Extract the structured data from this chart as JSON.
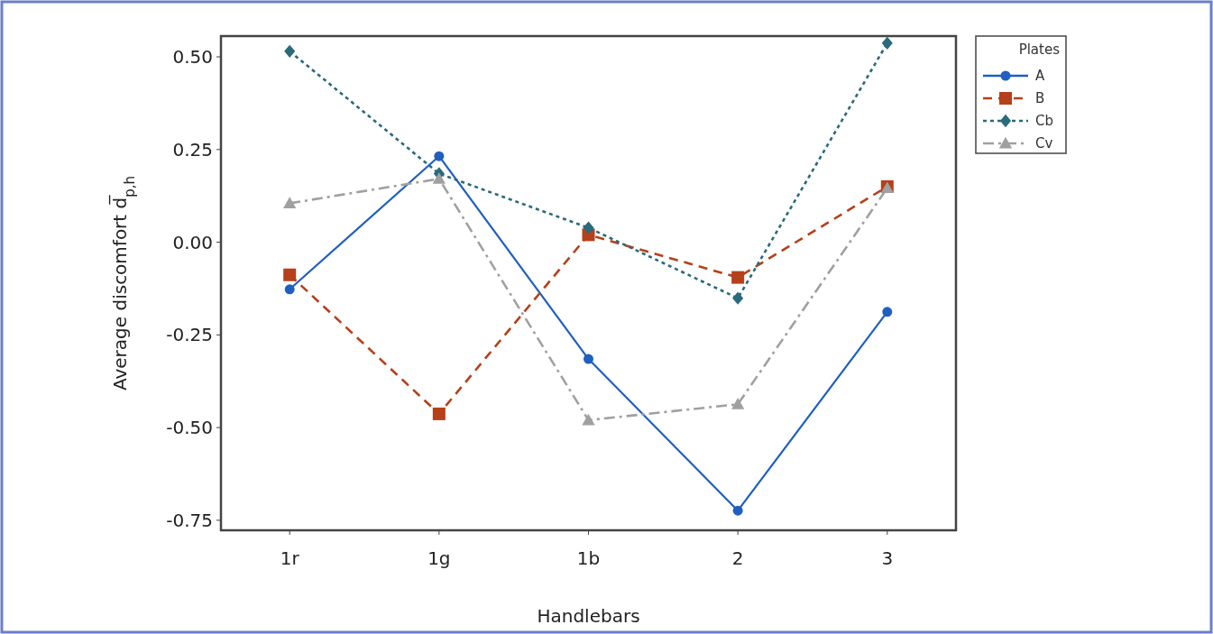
{
  "chart_data": {
    "type": "line",
    "xlabel": "Handlebars",
    "ylabel": "Average discomfort d̅$_{p,h}$",
    "legend_title": "Plates",
    "categories": [
      "1r",
      "1g",
      "1b",
      "2",
      "3"
    ],
    "series": [
      {
        "name": "A",
        "color": "#1f5fbf",
        "marker": "circle",
        "line_style": "solid",
        "values": [
          -0.127,
          0.232,
          -0.315,
          -0.724,
          -0.188
        ]
      },
      {
        "name": "B",
        "color": "#b5401a",
        "marker": "square",
        "line_style": "dashed",
        "values": [
          -0.088,
          -0.463,
          0.02,
          -0.095,
          0.15
        ]
      },
      {
        "name": "Cb",
        "color": "#2a6a7a",
        "marker": "diamond",
        "line_style": "dotted",
        "values": [
          0.515,
          0.185,
          0.039,
          -0.151,
          0.537
        ]
      },
      {
        "name": "Cv",
        "color": "#a0a0a0",
        "marker": "triangle",
        "line_style": "dashdot",
        "values": [
          0.105,
          0.171,
          -0.48,
          -0.437,
          0.146
        ]
      }
    ],
    "ylim": [
      -0.777,
      0.556
    ],
    "yticks": [
      {
        "value": 0.5,
        "label": "0.50"
      },
      {
        "value": 0.25,
        "label": "0.25"
      },
      {
        "value": 0,
        "label": "0.00"
      },
      {
        "value": -0.25,
        "label": "-0.25"
      },
      {
        "value": -0.5,
        "label": "-0.50"
      },
      {
        "value": -0.75,
        "label": "-0.75"
      }
    ],
    "grid": false,
    "legend": "top right"
  }
}
